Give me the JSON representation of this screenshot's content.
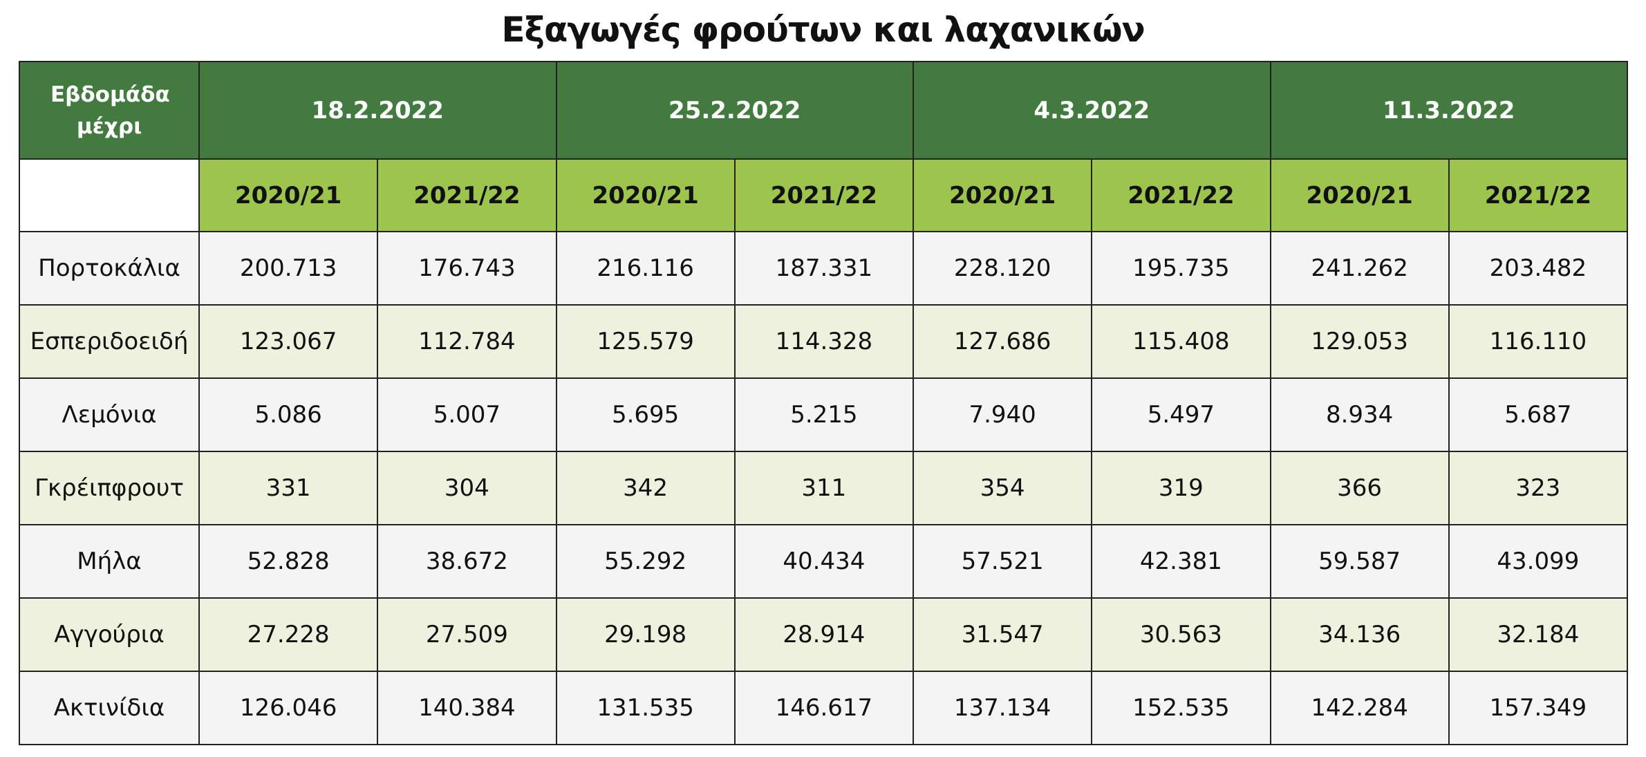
{
  "title": "Εξαγωγές φρούτων και λαχανικών",
  "table": {
    "header": {
      "week_label": "Εβδομάδα μέχρι",
      "dates": [
        "18.2.2022",
        "25.2.2022",
        "4.3.2022",
        "11.3.2022"
      ],
      "seasons": [
        "2020/21",
        "2021/22",
        "2020/21",
        "2021/22",
        "2020/21",
        "2021/22",
        "2020/21",
        "2021/22"
      ]
    },
    "rows": [
      {
        "label": "Πορτοκάλια",
        "values": [
          "200.713",
          "176.743",
          "216.116",
          "187.331",
          "228.120",
          "195.735",
          "241.262",
          "203.482"
        ]
      },
      {
        "label": "Εσπεριδοειδή",
        "values": [
          "123.067",
          "112.784",
          "125.579",
          "114.328",
          "127.686",
          "115.408",
          "129.053",
          "116.110"
        ]
      },
      {
        "label": "Λεμόνια",
        "values": [
          "5.086",
          "5.007",
          "5.695",
          "5.215",
          "7.940",
          "5.497",
          "8.934",
          "5.687"
        ]
      },
      {
        "label": "Γκρέιπφρουτ",
        "values": [
          "331",
          "304",
          "342",
          "311",
          "354",
          "319",
          "366",
          "323"
        ]
      },
      {
        "label": "Μήλα",
        "values": [
          "52.828",
          "38.672",
          "55.292",
          "40.434",
          "57.521",
          "42.381",
          "59.587",
          "43.099"
        ]
      },
      {
        "label": "Αγγούρια",
        "values": [
          "27.228",
          "27.509",
          "29.198",
          "28.914",
          "31.547",
          "30.563",
          "34.136",
          "32.184"
        ]
      },
      {
        "label": "Ακτινίδια",
        "values": [
          "126.046",
          "140.384",
          "131.535",
          "146.617",
          "137.134",
          "152.535",
          "142.284",
          "157.349"
        ]
      }
    ]
  }
}
